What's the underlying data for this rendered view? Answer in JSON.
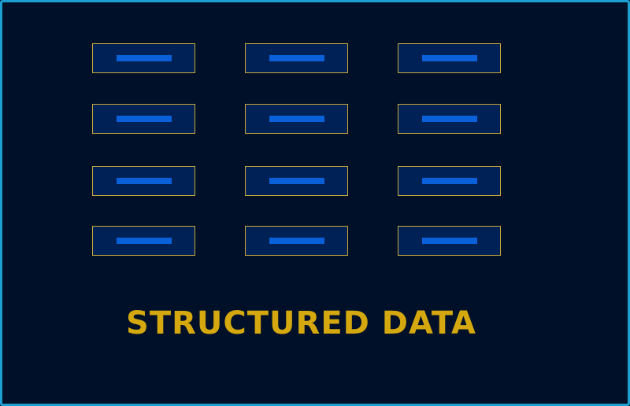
{
  "title": "STRUCTURED DATA",
  "grid": {
    "rows": 4,
    "columns": 3
  },
  "colors": {
    "background": "#001028",
    "frame_border": "#1e9fd2",
    "cell_fill": "#002156",
    "cell_border": "#c8a93a",
    "cell_bar": "#0a60d8",
    "title": "#d4a80e"
  }
}
